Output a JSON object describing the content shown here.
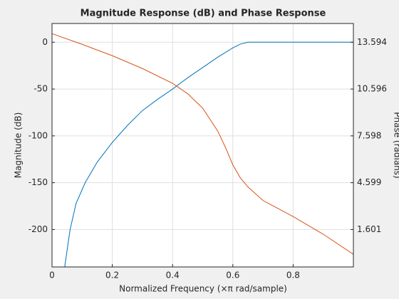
{
  "chart_data": {
    "type": "line",
    "title": "Magnitude Response (dB) and Phase Response",
    "x_label": "Normalized Frequency (×π rad/sample)",
    "y_label": "Magnitude (dB)",
    "y2_label": "Phase (radians)",
    "xlim": [
      0,
      1
    ],
    "xticks": [
      0,
      0.2,
      0.4,
      0.6,
      0.8
    ],
    "ylim": [
      -240,
      20
    ],
    "yticks": [
      0,
      -50,
      -100,
      -150,
      -200
    ],
    "y2lim": [
      -0.796,
      14.793
    ],
    "y2ticks": [
      13.594,
      10.596,
      7.598,
      4.599,
      1.601
    ],
    "grid": true,
    "series": [
      {
        "color": "#0072bd",
        "axis": "y",
        "x": [
          0.042,
          0.06,
          0.08,
          0.11,
          0.15,
          0.2,
          0.25,
          0.3,
          0.35,
          0.4,
          0.45,
          0.5,
          0.55,
          0.6,
          0.625,
          0.65,
          0.7,
          0.8,
          0.9,
          1
        ],
        "values": [
          -240,
          -200,
          -172,
          -150,
          -128,
          -107,
          -89,
          -73,
          -61,
          -50,
          -38,
          -27,
          -16,
          -6,
          -2,
          0,
          0,
          0,
          0,
          0
        ]
      },
      {
        "color": "#d95319",
        "axis": "y2",
        "x": [
          0,
          0.1,
          0.2,
          0.3,
          0.4,
          0.45,
          0.5,
          0.55,
          0.575,
          0.6,
          0.625,
          0.65,
          0.7,
          0.8,
          0.9,
          1
        ],
        "values": [
          14.14,
          13.46,
          12.73,
          11.91,
          10.96,
          10.3,
          9.37,
          7.9,
          6.88,
          5.74,
          4.9,
          4.33,
          3.46,
          2.43,
          1.3,
          0.01
        ]
      }
    ]
  }
}
